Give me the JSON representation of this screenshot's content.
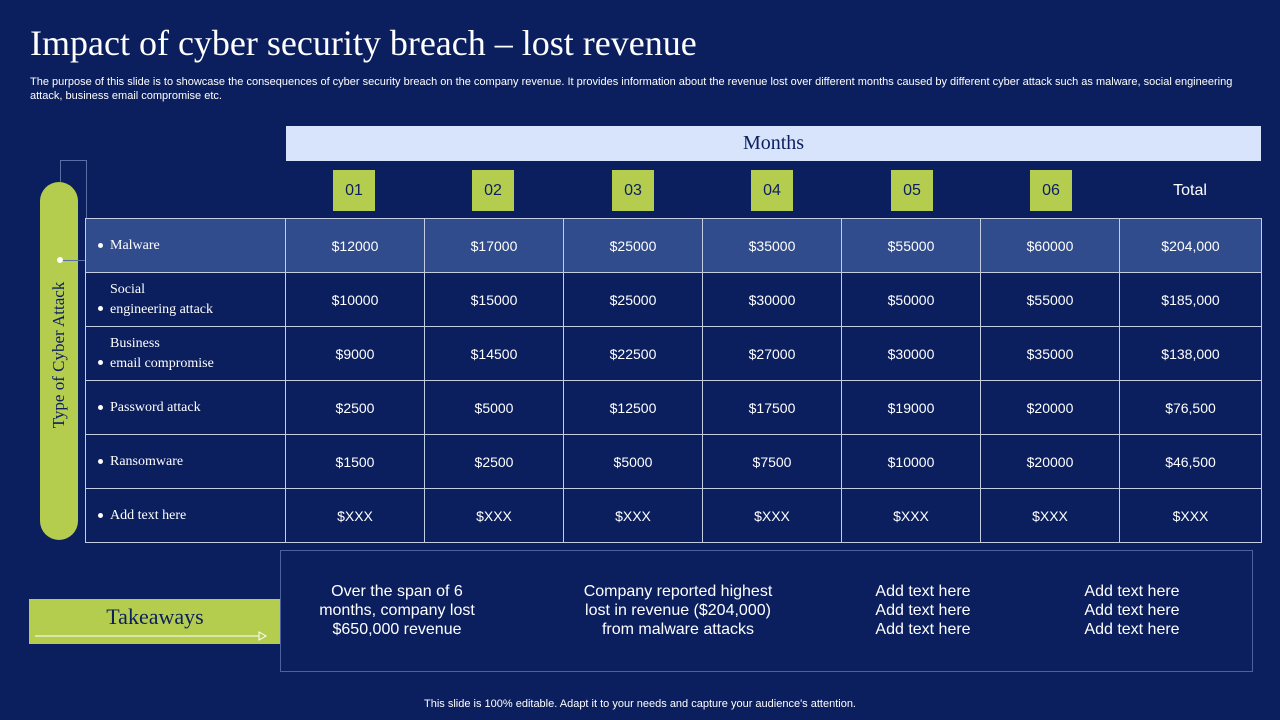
{
  "title": "Impact of cyber security breach – lost revenue",
  "subtitle": "The purpose of this slide is to showcase the consequences of cyber security breach on the company revenue. It provides information about the revenue lost over different months caused by different cyber attack such as malware, social engineering attack, business email compromise etc.",
  "months_header": "Months",
  "months": [
    "01",
    "02",
    "03",
    "04",
    "05",
    "06"
  ],
  "total_header": "Total",
  "side_label": "Type of Cyber Attack",
  "rows": [
    {
      "label": "Malware",
      "values": [
        "$12000",
        "$17000",
        "$25000",
        "$35000",
        "$55000",
        "$60000",
        "$204,000"
      ]
    },
    {
      "label": "Social\nengineering  attack",
      "values": [
        "$10000",
        "$15000",
        "$25000",
        "$30000",
        "$50000",
        "$55000",
        "$185,000"
      ]
    },
    {
      "label": "Business\nemail  compromise",
      "values": [
        "$9000",
        "$14500",
        "$22500",
        "$27000",
        "$30000",
        "$35000",
        "$138,000"
      ]
    },
    {
      "label": "Password attack",
      "values": [
        "$2500",
        "$5000",
        "$12500",
        "$17500",
        "$19000",
        "$20000",
        "$76,500"
      ]
    },
    {
      "label": "Ransomware",
      "values": [
        "$1500",
        "$2500",
        "$5000",
        "$7500",
        "$10000",
        "$20000",
        "$46,500"
      ]
    },
    {
      "label": "Add text  here",
      "values": [
        "$XXX",
        "$XXX",
        "$XXX",
        "$XXX",
        "$XXX",
        "$XXX",
        "$XXX"
      ]
    }
  ],
  "takeaways": {
    "label": "Takeaways",
    "items": [
      "Over the span of 6\nmonths, company lost\n$650,000 revenue",
      "Company reported highest\nlost in revenue ($204,000)\nfrom malware attacks",
      "Add text here\nAdd text here\nAdd text here",
      "Add text here\nAdd text here\nAdd text here"
    ]
  },
  "footer": "This slide is 100% editable. Adapt it to your needs and capture your audience's attention.",
  "colors": {
    "background": "#0b1f5e",
    "accent": "#b5cd4f",
    "header_bar": "#d7e4fb",
    "highlight_row": "#314c8c"
  }
}
